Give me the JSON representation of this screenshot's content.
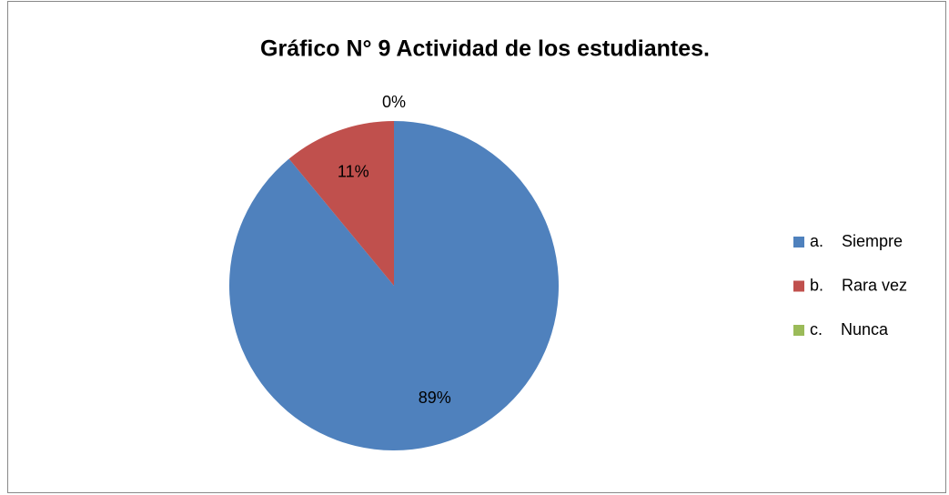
{
  "chart_data": {
    "type": "pie",
    "title": "Gráfico N° 9 Actividad de los estudiantes.",
    "categories": [
      "a.    Siempre",
      "b.    Rara vez",
      "c.    Nunca"
    ],
    "values": [
      89,
      11,
      0
    ],
    "value_labels": [
      "89%",
      "11%",
      "0%"
    ],
    "colors": [
      "#4f81bd",
      "#c0504d",
      "#9bbb59"
    ],
    "legend": "right"
  }
}
